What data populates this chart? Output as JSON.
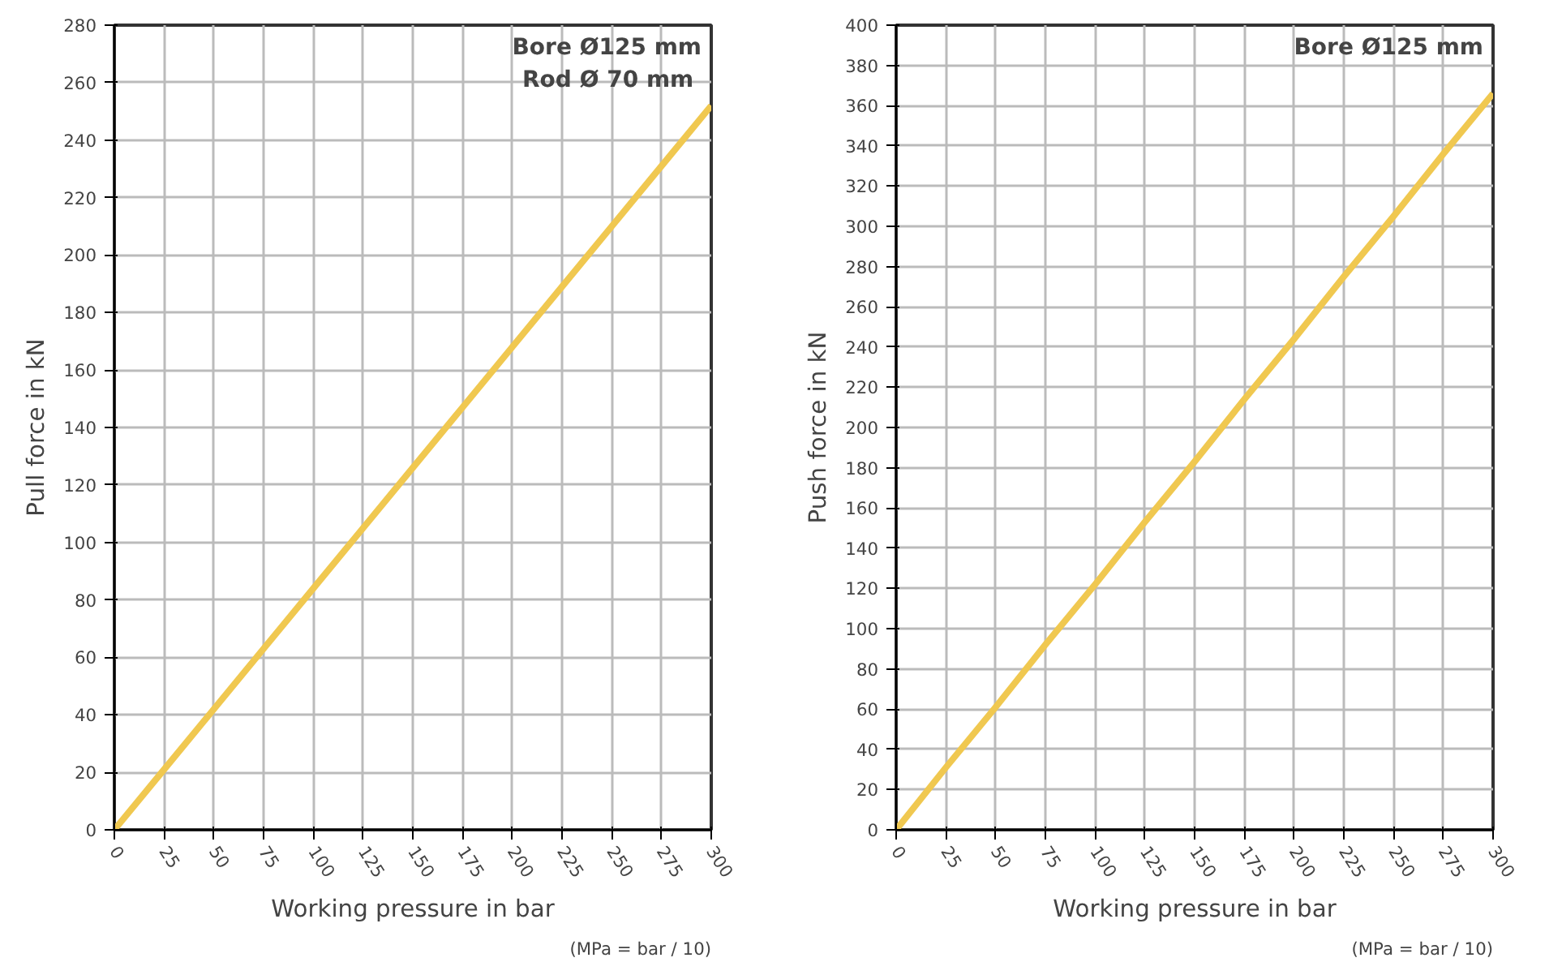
{
  "chart_data": [
    {
      "type": "line",
      "xlabel": "Working pressure in bar",
      "ylabel": "Pull force in kN",
      "annotations": [
        "Bore Ø125 mm",
        "Rod Ø  70 mm",
        "(MPa = bar / 10)"
      ],
      "x": [
        0,
        25,
        50,
        75,
        100,
        125,
        150,
        175,
        200,
        225,
        250,
        275,
        300
      ],
      "series": [
        {
          "color": "#f0c850",
          "values": [
            0,
            21,
            42,
            63,
            84,
            105,
            126,
            147,
            168,
            189,
            210,
            231,
            252
          ]
        }
      ],
      "xlim": [
        0,
        300
      ],
      "ylim": [
        0,
        280
      ],
      "xticks": [
        0,
        25,
        50,
        75,
        100,
        125,
        150,
        175,
        200,
        225,
        250,
        275,
        300
      ],
      "yticks": [
        0,
        20,
        40,
        60,
        80,
        100,
        120,
        140,
        160,
        180,
        200,
        220,
        240,
        260,
        280
      ],
      "grid": true,
      "marker": "none",
      "line_style": "solid"
    },
    {
      "type": "line",
      "xlabel": "Working pressure in bar",
      "ylabel": "Push force in kN",
      "annotations": [
        "Bore Ø125 mm",
        "(MPa = bar / 10)"
      ],
      "x": [
        0,
        25,
        50,
        75,
        100,
        125,
        150,
        175,
        200,
        225,
        250,
        275,
        300
      ],
      "series": [
        {
          "color": "#f0c850",
          "values": [
            0,
            31,
            61,
            92,
            122,
            153,
            183,
            214,
            244,
            275,
            305,
            336,
            366
          ]
        }
      ],
      "xlim": [
        0,
        300
      ],
      "ylim": [
        0,
        400
      ],
      "xticks": [
        0,
        25,
        50,
        75,
        100,
        125,
        150,
        175,
        200,
        225,
        250,
        275,
        300
      ],
      "yticks": [
        0,
        20,
        40,
        60,
        80,
        100,
        120,
        140,
        160,
        180,
        200,
        220,
        240,
        260,
        280,
        300,
        320,
        340,
        360,
        380,
        400
      ],
      "grid": true,
      "marker": "none",
      "line_style": "solid"
    }
  ]
}
